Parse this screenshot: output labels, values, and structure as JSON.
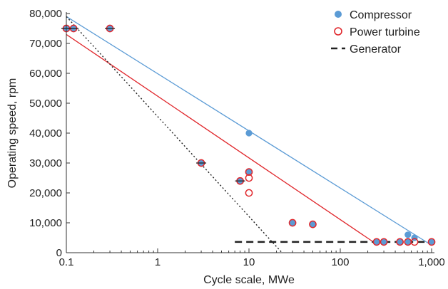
{
  "chart_data": {
    "type": "scatter",
    "xlabel": "Cycle scale, MWe",
    "ylabel": "Operating speed, rpm",
    "xscale": "log",
    "xlim": [
      0.1,
      1000
    ],
    "ylim": [
      0,
      80000
    ],
    "x_ticks": [
      0.1,
      1,
      10,
      100,
      1000
    ],
    "x_tick_labels": [
      "0.1",
      "1",
      "10",
      "100",
      "1,000"
    ],
    "y_ticks": [
      0,
      10000,
      20000,
      30000,
      40000,
      50000,
      60000,
      70000,
      80000
    ],
    "y_tick_labels": [
      "0",
      "10,000",
      "20,000",
      "30,000",
      "40,000",
      "50,000",
      "60,000",
      "70,000",
      "80,000"
    ],
    "grid": false,
    "legend_position": "top-right",
    "colors": {
      "compressor": "#5b9bd5",
      "power_turbine": "#e0262b",
      "generator": "#222222",
      "trend_dotted": "#222222"
    },
    "series": [
      {
        "name": "Compressor",
        "marker": "filled-circle",
        "points": [
          {
            "x": 0.1,
            "y": 75000
          },
          {
            "x": 0.12,
            "y": 75000
          },
          {
            "x": 0.3,
            "y": 75000
          },
          {
            "x": 3,
            "y": 30000
          },
          {
            "x": 8,
            "y": 24000
          },
          {
            "x": 10,
            "y": 40000
          },
          {
            "x": 10,
            "y": 27000
          },
          {
            "x": 30,
            "y": 10000
          },
          {
            "x": 50,
            "y": 9500
          },
          {
            "x": 250,
            "y": 3600
          },
          {
            "x": 300,
            "y": 3600
          },
          {
            "x": 450,
            "y": 3600
          },
          {
            "x": 550,
            "y": 3600
          },
          {
            "x": 550,
            "y": 6000
          },
          {
            "x": 650,
            "y": 5000
          },
          {
            "x": 1000,
            "y": 3600
          }
        ]
      },
      {
        "name": "Power turbine",
        "marker": "open-circle",
        "points": [
          {
            "x": 0.1,
            "y": 75000
          },
          {
            "x": 0.12,
            "y": 75000
          },
          {
            "x": 0.3,
            "y": 75000
          },
          {
            "x": 3,
            "y": 30000
          },
          {
            "x": 8,
            "y": 24000
          },
          {
            "x": 10,
            "y": 27000
          },
          {
            "x": 10,
            "y": 25000
          },
          {
            "x": 10,
            "y": 20000
          },
          {
            "x": 30,
            "y": 10000
          },
          {
            "x": 50,
            "y": 9500
          },
          {
            "x": 250,
            "y": 3600
          },
          {
            "x": 300,
            "y": 3600
          },
          {
            "x": 450,
            "y": 3600
          },
          {
            "x": 550,
            "y": 3600
          },
          {
            "x": 650,
            "y": 3600
          },
          {
            "x": 1000,
            "y": 3600
          }
        ]
      },
      {
        "name": "Generator",
        "marker": "dashed-line",
        "line": [
          {
            "x": 7,
            "y": 3600
          },
          {
            "x": 1000,
            "y": 3600
          }
        ]
      }
    ],
    "trend_lines": [
      {
        "color_key": "compressor",
        "style": "solid",
        "points": [
          {
            "x": 0.1,
            "y": 79000
          },
          {
            "x": 1000,
            "y": 2500
          }
        ]
      },
      {
        "color_key": "power_turbine",
        "style": "solid",
        "points": [
          {
            "x": 0.1,
            "y": 73000
          },
          {
            "x": 230,
            "y": 3600
          }
        ]
      },
      {
        "color_key": "trend_dotted",
        "style": "dotted",
        "points": [
          {
            "x": 0.1,
            "y": 79000
          },
          {
            "x": 23,
            "y": 0
          }
        ]
      }
    ]
  }
}
